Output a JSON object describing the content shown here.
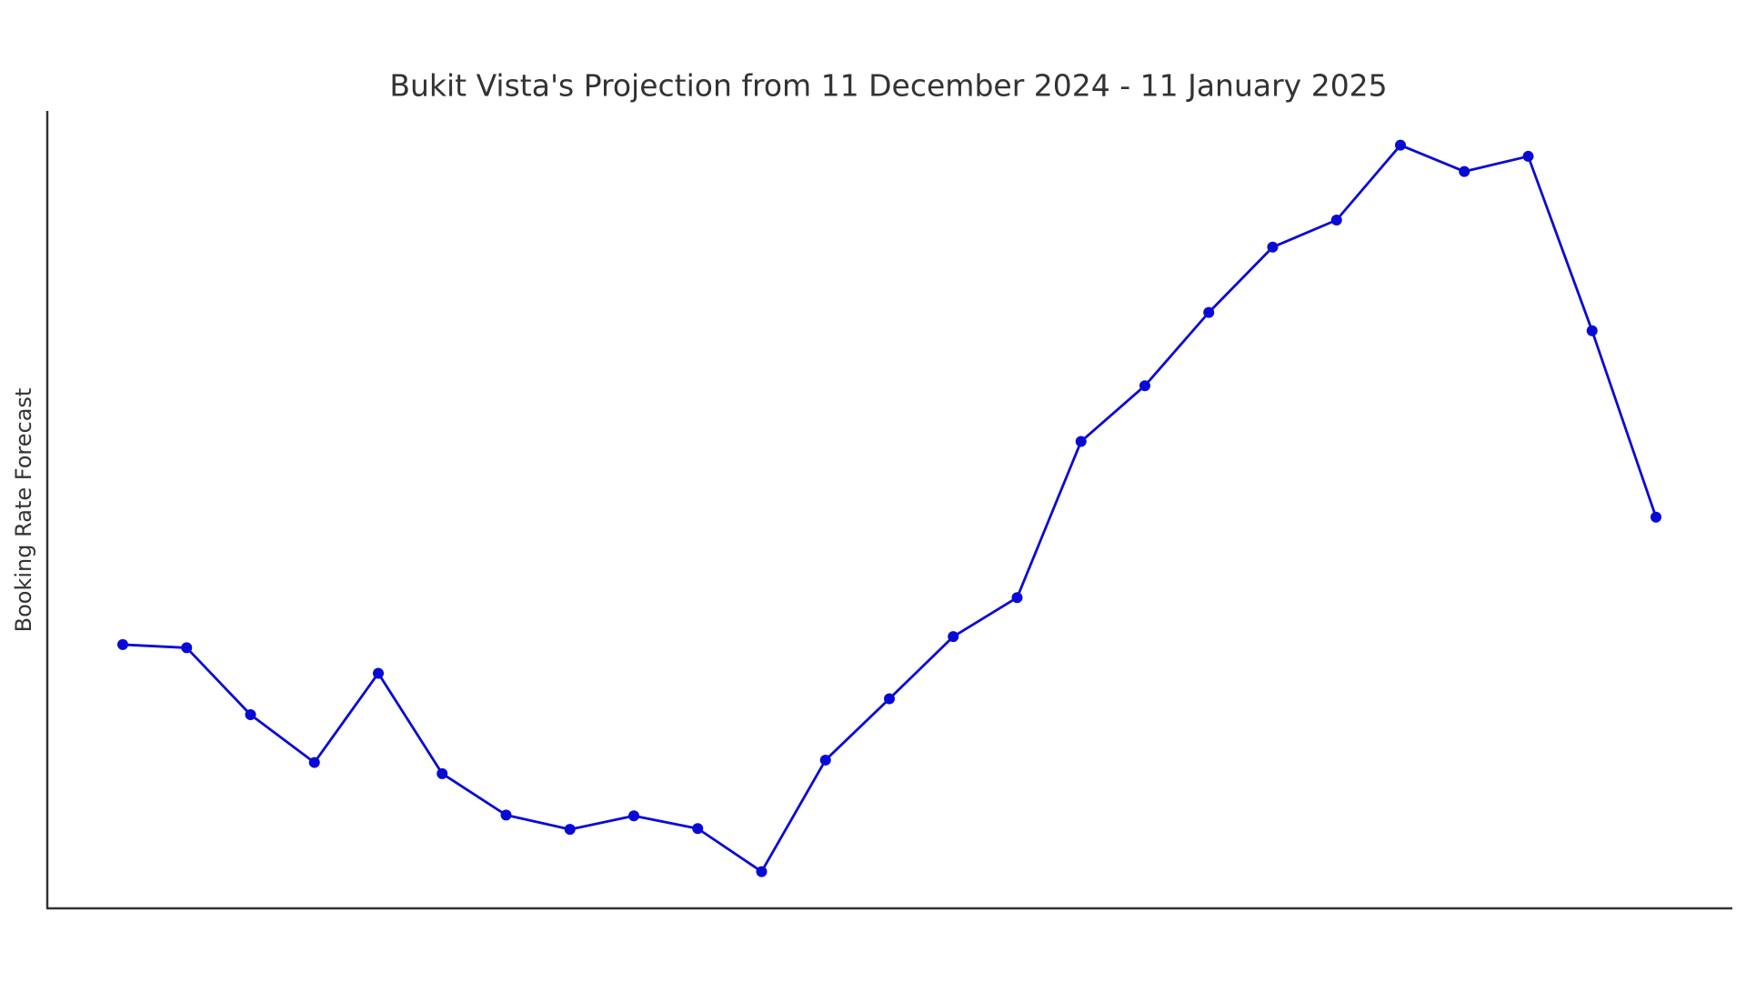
{
  "chart_data": {
    "type": "line",
    "title": "Bukit Vista's Projection from 11 December 2024 - 11 January 2025",
    "y_label": "Booking Rate Forecast",
    "categories": [
      null,
      null,
      null,
      null,
      null,
      null,
      null,
      null,
      null,
      null,
      null,
      null,
      null,
      null,
      null,
      null,
      null,
      null,
      null,
      null,
      null,
      null,
      null,
      null,
      null
    ],
    "series": [
      {
        "color": "#0a0ad6",
        "values": [
          33.0,
          32.6,
          24.2,
          18.2,
          29.4,
          16.8,
          11.6,
          9.8,
          11.5,
          9.9,
          4.5,
          18.5,
          26.2,
          34.0,
          38.9,
          58.5,
          65.5,
          74.7,
          82.9,
          86.3,
          95.7,
          92.4,
          94.3,
          72.4,
          49.0
        ]
      }
    ],
    "ylim": [
      0,
      100
    ]
  }
}
